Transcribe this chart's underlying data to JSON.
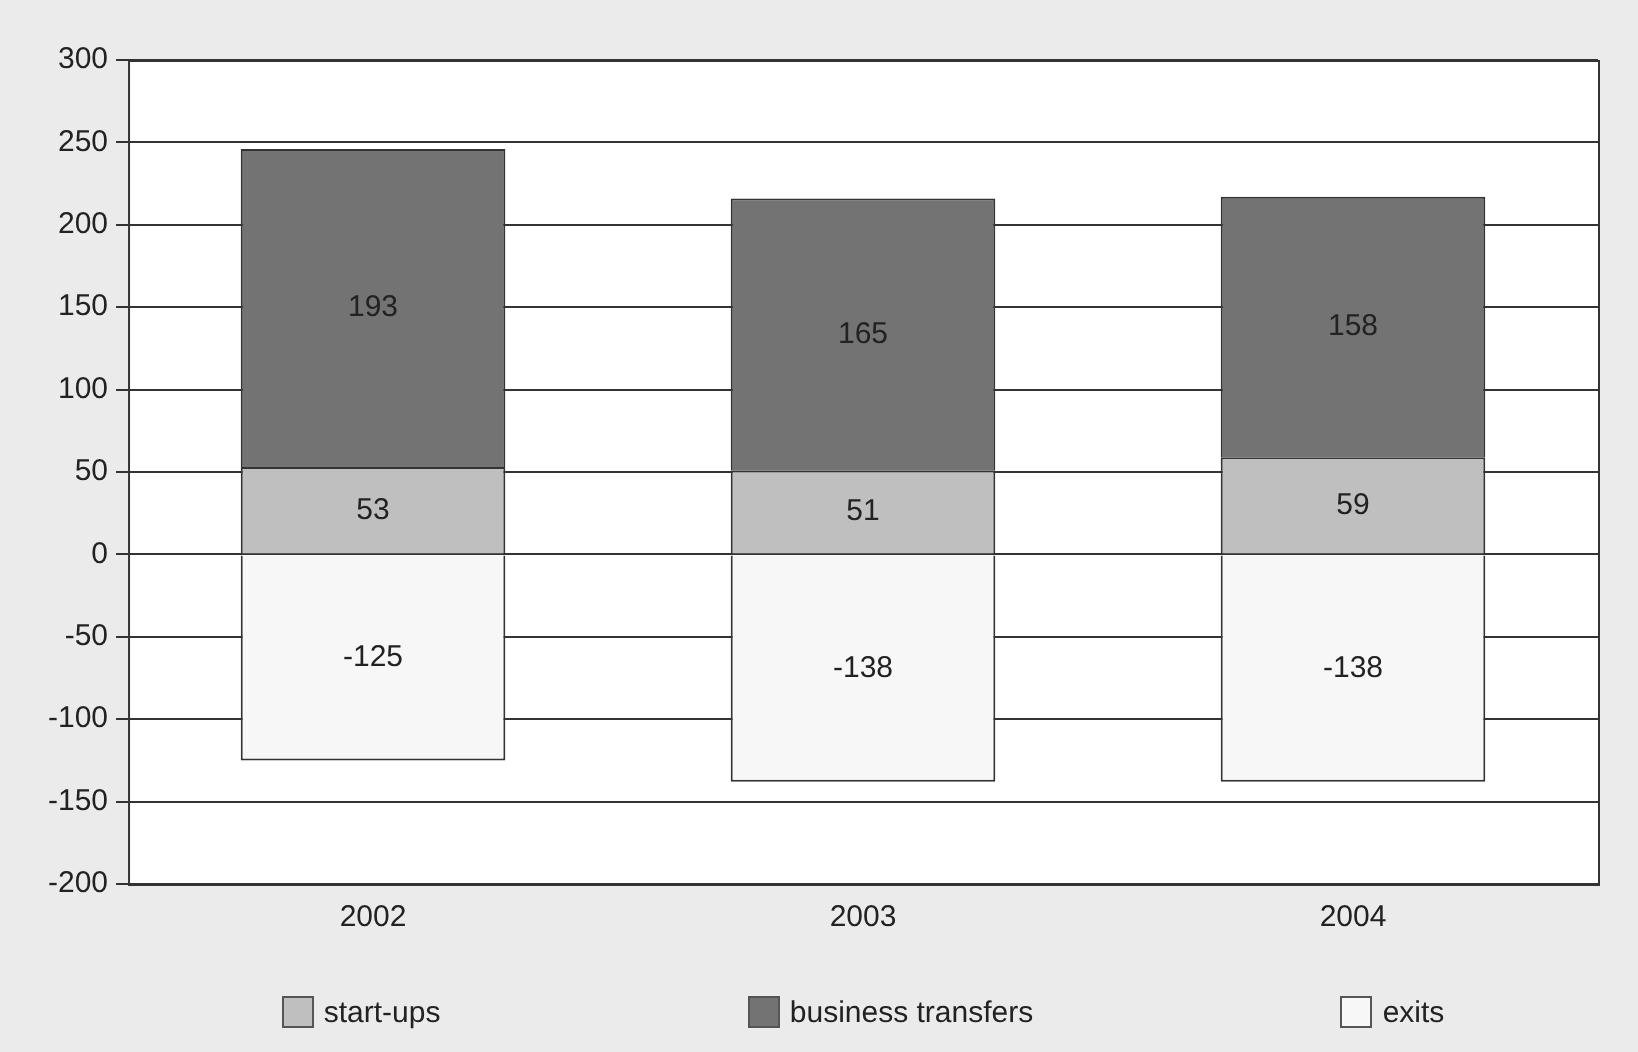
{
  "chart_data": {
    "type": "bar",
    "stacked": true,
    "categories": [
      "2002",
      "2003",
      "2004"
    ],
    "series": [
      {
        "name": "start-ups",
        "color": "#bfbfbf",
        "values": [
          53,
          51,
          59
        ]
      },
      {
        "name": "business transfers",
        "color": "#737373",
        "values": [
          193,
          165,
          158
        ]
      },
      {
        "name": "exits",
        "color": "#f7f7f7",
        "values": [
          -125,
          -138,
          -138
        ]
      }
    ],
    "ylim": [
      -200,
      300
    ],
    "yticks": [
      -200,
      -150,
      -100,
      -50,
      0,
      50,
      100,
      150,
      200,
      250,
      300
    ],
    "grid": "y",
    "legend": "bottom",
    "data_labels": true
  }
}
